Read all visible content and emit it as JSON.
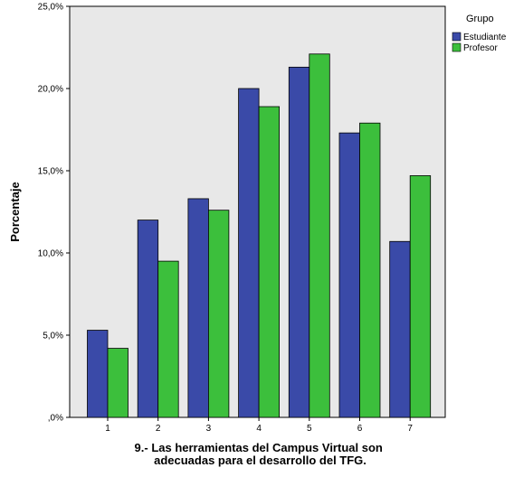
{
  "chart_data": {
    "type": "bar",
    "categories": [
      "1",
      "2",
      "3",
      "4",
      "5",
      "6",
      "7"
    ],
    "series": [
      {
        "name": "Estudiante",
        "values": [
          5.3,
          12.0,
          13.3,
          20.0,
          21.3,
          17.3,
          10.7
        ],
        "color": "#3a4aa8"
      },
      {
        "name": "Profesor",
        "values": [
          4.2,
          9.5,
          12.6,
          18.9,
          22.1,
          17.9,
          14.7
        ],
        "color": "#3cbf3c"
      }
    ],
    "ylabel": "Porcentaje",
    "xlabel_lines": [
      "9.- Las herramientas del Campus Virtual son",
      "adecuadas para el desarrollo del TFG."
    ],
    "yticks": [
      ",0%",
      "5,0%",
      "10,0%",
      "15,0%",
      "20,0%",
      "25,0%"
    ],
    "ylim": [
      0,
      25
    ],
    "grid": false,
    "legend": {
      "title": "Grupo",
      "position": "top-right"
    },
    "plot_background": "#e8e8e8"
  }
}
